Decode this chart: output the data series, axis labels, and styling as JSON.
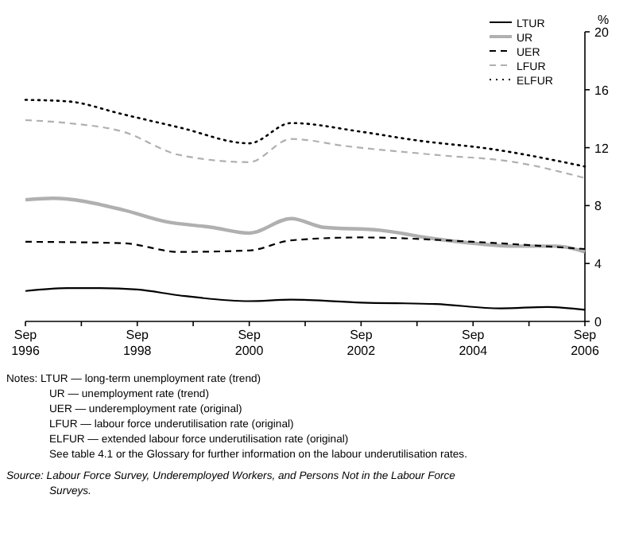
{
  "chart_data": {
    "type": "line",
    "ylabel": "%",
    "series": [
      {
        "name": "LTUR",
        "color": "#000000",
        "line_style": "solid",
        "x": [
          "1996-09",
          "1997-06",
          "1998-01",
          "1998-09",
          "1999-06",
          "2000-09",
          "2001-06",
          "2002-09",
          "2004-01",
          "2005-03",
          "2006-01",
          "2006-09"
        ],
        "values": [
          2.1,
          2.3,
          2.3,
          2.2,
          1.8,
          1.4,
          1.5,
          1.3,
          1.2,
          0.9,
          1.0,
          0.8
        ]
      },
      {
        "name": "UR",
        "color": "#b0b0b0",
        "line_style": "solid",
        "x": [
          "1996-09",
          "1997-03",
          "1998-06",
          "1999-03",
          "2000-01",
          "2000-09",
          "2001-06",
          "2002-01",
          "2003-01",
          "2004-01",
          "2004-09",
          "2005-06",
          "2006-03",
          "2006-09"
        ],
        "values": [
          8.4,
          8.5,
          7.7,
          6.9,
          6.5,
          6.1,
          7.1,
          6.5,
          6.3,
          5.7,
          5.4,
          5.2,
          5.2,
          4.8
        ]
      },
      {
        "name": "UER",
        "color": "#000000",
        "line_style": "dashed",
        "x": [
          "1996-09",
          "1998-06",
          "1999-06",
          "2000-09",
          "2001-06",
          "2002-09",
          "2004-09",
          "2006-09"
        ],
        "values": [
          5.5,
          5.4,
          4.8,
          4.9,
          5.6,
          5.8,
          5.5,
          5.0
        ]
      },
      {
        "name": "LFUR",
        "color": "#b0b0b0",
        "line_style": "dashed",
        "x": [
          "1996-09",
          "1997-06",
          "1998-06",
          "1999-06",
          "2000-09",
          "2001-06",
          "2002-06",
          "2004-01",
          "2005-06",
          "2006-09"
        ],
        "values": [
          13.9,
          13.7,
          13.1,
          11.5,
          11.0,
          12.6,
          12.1,
          11.5,
          11.0,
          9.9
        ]
      },
      {
        "name": "ELFUR",
        "color": "#000000",
        "line_style": "dotted",
        "x": [
          "1996-09",
          "1997-06",
          "1998-06",
          "1999-06",
          "2000-09",
          "2001-06",
          "2002-09",
          "2003-09",
          "2005-01",
          "2006-09"
        ],
        "values": [
          15.3,
          15.2,
          14.3,
          13.4,
          12.3,
          13.7,
          13.1,
          12.5,
          11.9,
          10.7
        ]
      }
    ],
    "xlim": [
      "1996-09",
      "2006-09"
    ],
    "xticks": [
      {
        "value": "1996-09",
        "label": "Sep 1996"
      },
      {
        "value": "1997-09",
        "label": null
      },
      {
        "value": "1998-09",
        "label": "Sep 1998"
      },
      {
        "value": "1999-09",
        "label": null
      },
      {
        "value": "2000-09",
        "label": "Sep 2000"
      },
      {
        "value": "2001-09",
        "label": null
      },
      {
        "value": "2002-09",
        "label": "Sep 2002"
      },
      {
        "value": "2003-09",
        "label": null
      },
      {
        "value": "2004-09",
        "label": "Sep 2004"
      },
      {
        "value": "2005-09",
        "label": null
      },
      {
        "value": "2006-09",
        "label": "Sep 2006"
      }
    ],
    "ylim": [
      0,
      20
    ],
    "yticks": [
      0,
      4,
      8,
      12,
      16,
      20
    ],
    "grid": false,
    "legend": "top right",
    "marker": "none",
    "annotations": [
      "Notes: LTUR — long-term unemployment rate (trend)",
      "UR — unemployment rate (trend)",
      "UER — underemployment rate (original)",
      "LFUR — labour force underutilisation rate (original)",
      "ELFUR — extended labour force underutilisation rate (original)",
      "See table 4.1 or the Glossary for further information on the labour underutilisation rates.",
      "Source: Labour Force Survey, Underemployed Workers, and Persons Not in the Labour Force Surveys."
    ]
  }
}
